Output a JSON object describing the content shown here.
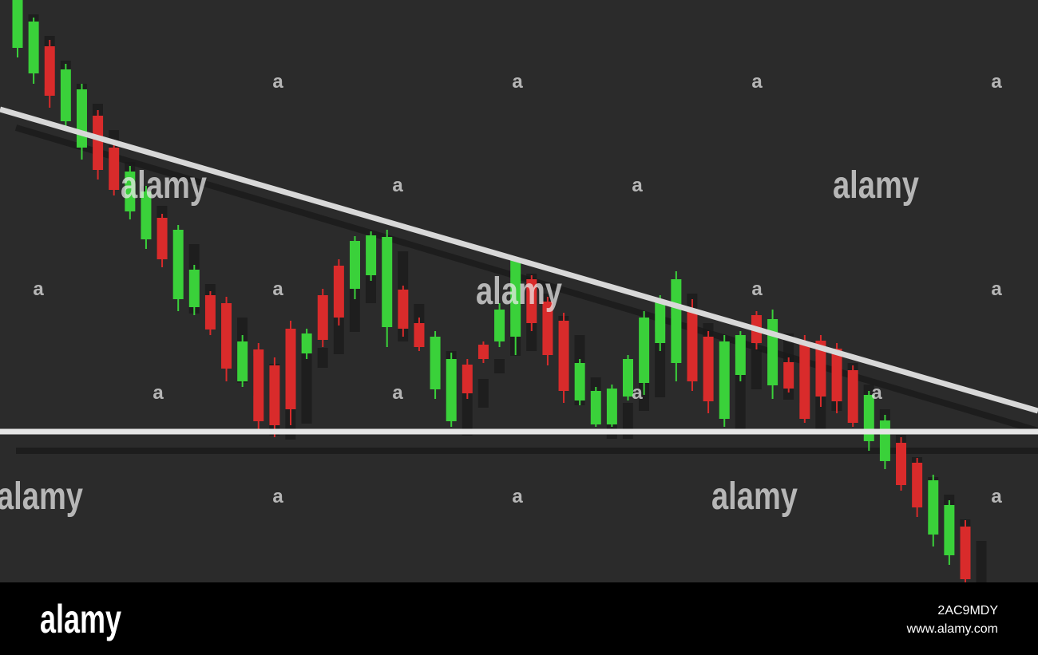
{
  "chart_data": {
    "type": "candlestick",
    "up_color": "#3ad13a",
    "down_color": "#d92b2b",
    "ylim": [
      0,
      730
    ],
    "open": [
      670,
      638,
      672,
      578,
      545,
      585,
      545,
      465,
      430,
      457,
      355,
      345,
      360,
      350,
      252,
      292,
      272,
      318,
      287,
      360,
      397,
      368,
      385,
      320,
      367,
      325,
      242,
      202,
      273,
      298,
      302,
      308,
      380,
      352,
      328,
      228,
      198,
      198,
      233,
      250,
      300,
      275,
      343,
      308,
      205,
      260,
      335,
      247,
      276,
      302,
      303,
      293,
      266,
      177,
      152,
      175,
      150,
      60,
      34,
      70
    ],
    "high": [
      730,
      708,
      680,
      650,
      625,
      592,
      552,
      522,
      497,
      462,
      448,
      398,
      365,
      358,
      310,
      300,
      282,
      328,
      318,
      368,
      405,
      434,
      440,
      442,
      372,
      332,
      315,
      288,
      280,
      302,
      350,
      408,
      385,
      358,
      338,
      280,
      245,
      248,
      285,
      340,
      360,
      390,
      355,
      315,
      310,
      315,
      340,
      342,
      282,
      310,
      310,
      300,
      272,
      240,
      210,
      182,
      156,
      135,
      103,
      78
    ],
    "low": [
      658,
      625,
      595,
      572,
      530,
      505,
      485,
      455,
      418,
      395,
      340,
      335,
      310,
      252,
      245,
      192,
      182,
      197,
      280,
      295,
      322,
      355,
      378,
      295,
      308,
      290,
      230,
      195,
      230,
      275,
      295,
      285,
      315,
      272,
      225,
      222,
      195,
      195,
      228,
      235,
      290,
      252,
      240,
      212,
      195,
      252,
      292,
      230,
      238,
      200,
      220,
      212,
      195,
      165,
      142,
      115,
      82,
      45,
      22,
      0
    ],
    "close": [
      730,
      703,
      610,
      643,
      618,
      517,
      492,
      515,
      490,
      405,
      442,
      392,
      317,
      268,
      302,
      202,
      197,
      217,
      312,
      304,
      332,
      428,
      435,
      433,
      318,
      295,
      308,
      280,
      237,
      280,
      342,
      405,
      325,
      285,
      240,
      275,
      240,
      243,
      280,
      332,
      353,
      380,
      252,
      227,
      302,
      310,
      300,
      330,
      243,
      205,
      233,
      227,
      200,
      235,
      203,
      122,
      94,
      128,
      97,
      4
    ]
  },
  "watermark": {
    "large": [
      "alamy",
      "alamy",
      "alamy",
      "alamy",
      "alamy"
    ],
    "small": [
      "a",
      "a",
      "a",
      "a",
      "a",
      "a",
      "a",
      "a",
      "a",
      "a",
      "a",
      "a",
      "a",
      "a",
      "a",
      "a",
      "a"
    ]
  },
  "footer": {
    "logo": "alamy",
    "image_id": "2AC9MDY",
    "url": "www.alamy.com"
  }
}
